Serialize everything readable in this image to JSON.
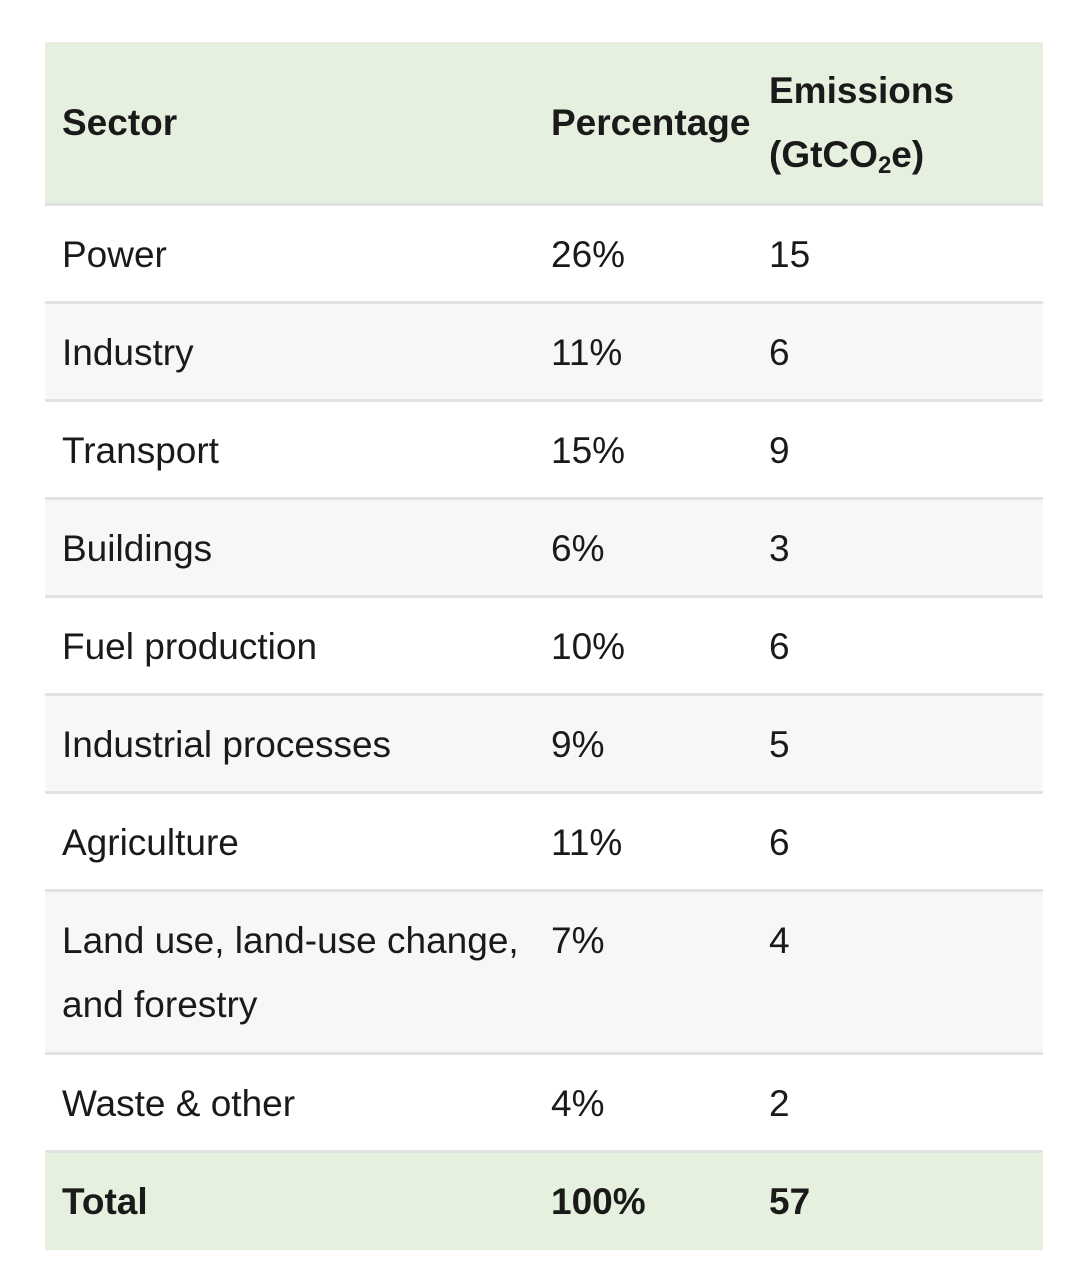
{
  "chart_data": {
    "type": "table",
    "columns": [
      "Sector",
      "Percentage",
      "Emissions",
      "(GtCO",
      "2",
      "e)"
    ],
    "headers": {
      "sector": "Sector",
      "percentage": "Percentage",
      "emissions_line1": "Emissions",
      "emissions_line2_pre": "(GtCO",
      "emissions_line2_sub": "2",
      "emissions_line2_post": "e)"
    },
    "rows": [
      {
        "sector": "Power",
        "percentage": "26%",
        "emissions": "15"
      },
      {
        "sector": "Industry",
        "percentage": "11%",
        "emissions": "6"
      },
      {
        "sector": "Transport",
        "percentage": "15%",
        "emissions": "9"
      },
      {
        "sector": "Buildings",
        "percentage": "6%",
        "emissions": "3"
      },
      {
        "sector": "Fuel production",
        "percentage": "10%",
        "emissions": "6"
      },
      {
        "sector": "Industrial processes",
        "percentage": "9%",
        "emissions": "5"
      },
      {
        "sector": "Agriculture",
        "percentage": "11%",
        "emissions": "6"
      },
      {
        "sector": "Land use, land-use change, and forestry",
        "percentage": "7%",
        "emissions": "4"
      },
      {
        "sector": "Waste & other",
        "percentage": "4%",
        "emissions": "2"
      }
    ],
    "total": {
      "sector": "Total",
      "percentage": "100%",
      "emissions": "57"
    }
  },
  "colors": {
    "header_bg": "#e6f0df",
    "stripe_bg": "#f7f7f7",
    "border": "#e2e2e2",
    "text": "#1a1a1a"
  }
}
